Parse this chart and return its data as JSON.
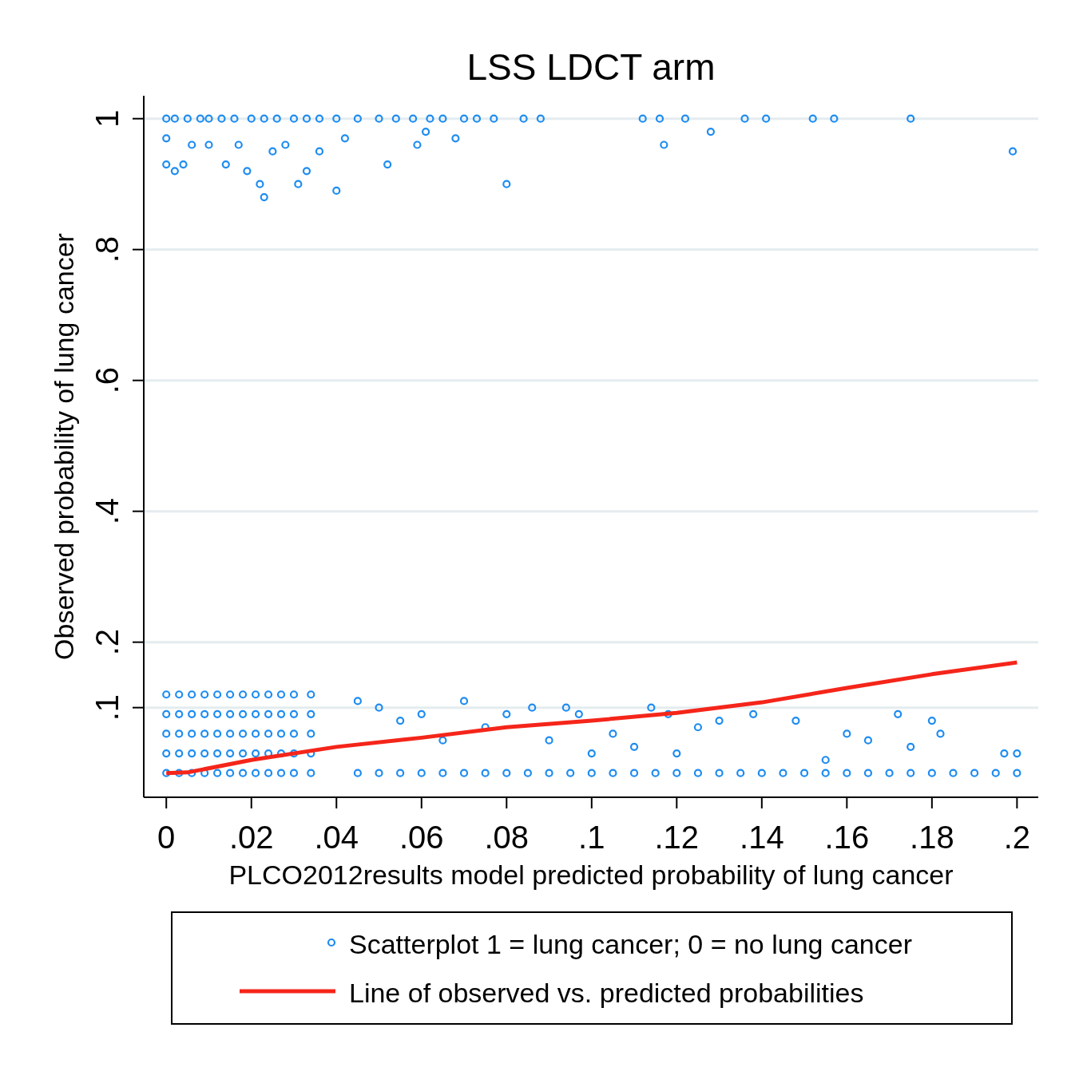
{
  "chart_data": {
    "type": "scatter",
    "title": "LSS LDCT arm",
    "xlabel": "PLCO2012results model predicted probability of lung cancer",
    "ylabel": "Observed probability of lung cancer",
    "xlim": [
      -0.0053,
      0.205
    ],
    "ylim": [
      -0.037,
      1.035
    ],
    "xticks": [
      0,
      {
        "value": 0.02,
        "label": ".02"
      },
      {
        "value": 0.04,
        "label": ".04"
      },
      {
        "value": 0.06,
        "label": ".06"
      },
      {
        "value": 0.08,
        "label": ".08"
      },
      {
        "value": 0.1,
        "label": ".1"
      },
      {
        "value": 0.12,
        "label": ".12"
      },
      {
        "value": 0.14,
        "label": ".14"
      },
      {
        "value": 0.16,
        "label": ".16"
      },
      {
        "value": 0.18,
        "label": ".18"
      },
      {
        "value": 0.2,
        "label": ".2"
      }
    ],
    "yticks": [
      {
        "value": 0.1,
        "label": ".1"
      },
      {
        "value": 0.2,
        "label": ".2"
      },
      {
        "value": 0.4,
        "label": ".4"
      },
      {
        "value": 0.6,
        "label": ".6"
      },
      {
        "value": 0.8,
        "label": ".8"
      },
      1
    ],
    "grid": "y",
    "legend": "bottom",
    "series": [
      {
        "name": "Scatterplot 1 = lung cancer; 0 = no lung cancer",
        "marker": "circle",
        "color": "#1e8cf0",
        "x": [
          0,
          0.002,
          0.005,
          0.008,
          0.01,
          0.013,
          0.016,
          0.02,
          0.023,
          0.026,
          0.03,
          0.033,
          0.036,
          0.04,
          0.045,
          0.05,
          0.054,
          0.058,
          0.062,
          0.065,
          0.07,
          0.073,
          0.077,
          0.084,
          0.088,
          0.112,
          0.116,
          0.122,
          0.136,
          0.141,
          0.152,
          0.157,
          0.175,
          0,
          0,
          0.002,
          0.004,
          0.006,
          0.01,
          0.014,
          0.017,
          0.019,
          0.022,
          0.023,
          0.025,
          0.028,
          0.031,
          0.033,
          0.036,
          0.04,
          0.042,
          0.052,
          0.059,
          0.061,
          0.068,
          0.08,
          0.117,
          0.128,
          0.199,
          0.045,
          0.05,
          0.055,
          0.06,
          0.065,
          0.07,
          0.075,
          0.08,
          0.085,
          0.09,
          0.095,
          0.1,
          0.105,
          0.11,
          0.115,
          0.12,
          0.125,
          0.13,
          0.135,
          0.14,
          0.145,
          0.15,
          0.155,
          0.16,
          0.165,
          0.17,
          0.175,
          0.18,
          0.185,
          0.19,
          0.195,
          0.2,
          0,
          0,
          0,
          0,
          0,
          0.003,
          0.003,
          0.003,
          0.003,
          0.003,
          0.006,
          0.006,
          0.006,
          0.006,
          0.006,
          0.009,
          0.009,
          0.009,
          0.009,
          0.009,
          0.012,
          0.012,
          0.012,
          0.012,
          0.012,
          0.015,
          0.015,
          0.015,
          0.015,
          0.015,
          0.018,
          0.018,
          0.018,
          0.018,
          0.018,
          0.021,
          0.021,
          0.021,
          0.021,
          0.021,
          0.024,
          0.024,
          0.024,
          0.024,
          0.024,
          0.027,
          0.027,
          0.027,
          0.027,
          0.027,
          0.03,
          0.03,
          0.03,
          0.03,
          0.03,
          0.034,
          0.034,
          0.034,
          0.034,
          0.034,
          0.045,
          0.05,
          0.055,
          0.06,
          0.065,
          0.07,
          0.075,
          0.08,
          0.086,
          0.09,
          0.094,
          0.097,
          0.1,
          0.105,
          0.11,
          0.114,
          0.118,
          0.12,
          0.125,
          0.13,
          0.138,
          0.148,
          0.155,
          0.16,
          0.165,
          0.172,
          0.175,
          0.18,
          0.182,
          0.197,
          0.2
        ],
        "values": [
          1,
          1,
          1,
          1,
          1,
          1,
          1,
          1,
          1,
          1,
          1,
          1,
          1,
          1,
          1,
          1,
          1,
          1,
          1,
          1,
          1,
          1,
          1,
          1,
          1,
          1,
          1,
          1,
          1,
          1,
          1,
          1,
          1,
          0.97,
          0.93,
          0.92,
          0.93,
          0.96,
          0.96,
          0.93,
          0.96,
          0.92,
          0.9,
          0.88,
          0.95,
          0.96,
          0.9,
          0.92,
          0.95,
          0.89,
          0.97,
          0.93,
          0.96,
          0.98,
          0.97,
          0.9,
          0.96,
          0.98,
          0.95,
          0,
          0,
          0,
          0,
          0,
          0,
          0,
          0,
          0,
          0,
          0,
          0,
          0,
          0,
          0,
          0,
          0,
          0,
          0,
          0,
          0,
          0,
          0,
          0,
          0,
          0,
          0,
          0,
          0,
          0,
          0,
          0,
          0,
          0.03,
          0.06,
          0.09,
          0.12,
          0,
          0.03,
          0.06,
          0.09,
          0.12,
          0,
          0.03,
          0.06,
          0.09,
          0.12,
          0,
          0.03,
          0.06,
          0.09,
          0.12,
          0,
          0.03,
          0.06,
          0.09,
          0.12,
          0,
          0.03,
          0.06,
          0.09,
          0.12,
          0,
          0.03,
          0.06,
          0.09,
          0.12,
          0,
          0.03,
          0.06,
          0.09,
          0.12,
          0,
          0.03,
          0.06,
          0.09,
          0.12,
          0,
          0.03,
          0.06,
          0.09,
          0.12,
          0,
          0.03,
          0.06,
          0.09,
          0.12,
          0,
          0.03,
          0.06,
          0.09,
          0.12,
          0.11,
          0.1,
          0.08,
          0.09,
          0.05,
          0.11,
          0.07,
          0.09,
          0.1,
          0.05,
          0.1,
          0.09,
          0.03,
          0.06,
          0.04,
          0.1,
          0.09,
          0.03,
          0.07,
          0.08,
          0.09,
          0.08,
          0.02,
          0.06,
          0.05,
          0.09,
          0.04,
          0.08,
          0.06,
          0.03,
          0.03
        ]
      },
      {
        "name": "Line of observed vs. predicted probabilities",
        "type": "line",
        "color": "#f5251a",
        "line_style": "solid",
        "x": [
          0,
          0.005,
          0.02,
          0.04,
          0.06,
          0.08,
          0.1,
          0.12,
          0.14,
          0.16,
          0.18,
          0.2
        ],
        "values": [
          0,
          0.001,
          0.02,
          0.04,
          0.054,
          0.07,
          0.08,
          0.092,
          0.108,
          0.13,
          0.151,
          0.169
        ]
      }
    ]
  }
}
